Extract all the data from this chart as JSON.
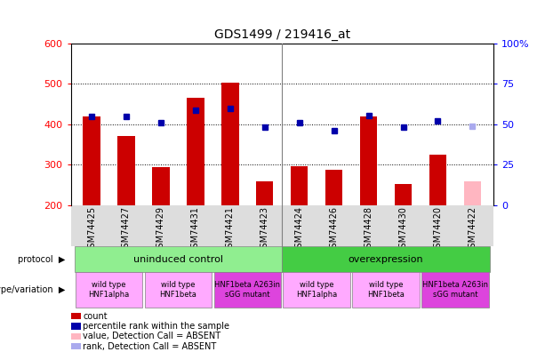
{
  "title": "GDS1499 / 219416_at",
  "samples": [
    "GSM74425",
    "GSM74427",
    "GSM74429",
    "GSM74431",
    "GSM74421",
    "GSM74423",
    "GSM74424",
    "GSM74426",
    "GSM74428",
    "GSM74430",
    "GSM74420",
    "GSM74422"
  ],
  "bar_values": [
    420,
    370,
    293,
    465,
    503,
    258,
    296,
    287,
    420,
    252,
    325,
    258
  ],
  "bar_colors": [
    "#cc0000",
    "#cc0000",
    "#cc0000",
    "#cc0000",
    "#cc0000",
    "#cc0000",
    "#cc0000",
    "#cc0000",
    "#cc0000",
    "#cc0000",
    "#cc0000",
    "#ffb6c1"
  ],
  "rank_values": [
    420,
    420,
    403,
    435,
    440,
    393,
    403,
    383,
    422,
    393,
    408,
    395
  ],
  "rank_colors": [
    "#0000aa",
    "#0000aa",
    "#0000aa",
    "#0000aa",
    "#0000aa",
    "#0000aa",
    "#0000aa",
    "#0000aa",
    "#0000aa",
    "#0000aa",
    "#0000aa",
    "#aaaaee"
  ],
  "ylim": [
    200,
    600
  ],
  "yticks_left": [
    200,
    300,
    400,
    500,
    600
  ],
  "yticks_right_pos": [
    200,
    300,
    400,
    500,
    600
  ],
  "yticks_right_labels": [
    "0",
    "25",
    "50",
    "75",
    "100%"
  ],
  "dotted_lines": [
    300,
    400,
    500
  ],
  "bar_width": 0.5,
  "rank_marker_size": 5,
  "bg_color": "#ffffff",
  "protocol_uninduced_color": "#90ee90",
  "protocol_overexpression_color": "#44cc44",
  "genotype_light_color": "#ffaaff",
  "genotype_dark_color": "#dd44dd",
  "separator_after_index": 5,
  "uninduced_label": "uninduced control",
  "overexpression_label": "overexpression",
  "genotype_groups": [
    {
      "label": "wild type\nHNF1alpha",
      "start": 0,
      "end": 2,
      "light": true
    },
    {
      "label": "wild type\nHNF1beta",
      "start": 2,
      "end": 4,
      "light": true
    },
    {
      "label": "HNF1beta A263in\nsGG mutant",
      "start": 4,
      "end": 6,
      "light": false
    },
    {
      "label": "wild type\nHNF1alpha",
      "start": 6,
      "end": 8,
      "light": true
    },
    {
      "label": "wild type\nHNF1beta",
      "start": 8,
      "end": 10,
      "light": true
    },
    {
      "label": "HNF1beta A263in\nsGG mutant",
      "start": 10,
      "end": 12,
      "light": false
    }
  ],
  "legend_items": [
    {
      "label": "count",
      "color": "#cc0000"
    },
    {
      "label": "percentile rank within the sample",
      "color": "#0000aa"
    },
    {
      "label": "value, Detection Call = ABSENT",
      "color": "#ffb6c1"
    },
    {
      "label": "rank, Detection Call = ABSENT",
      "color": "#aaaaee"
    }
  ]
}
